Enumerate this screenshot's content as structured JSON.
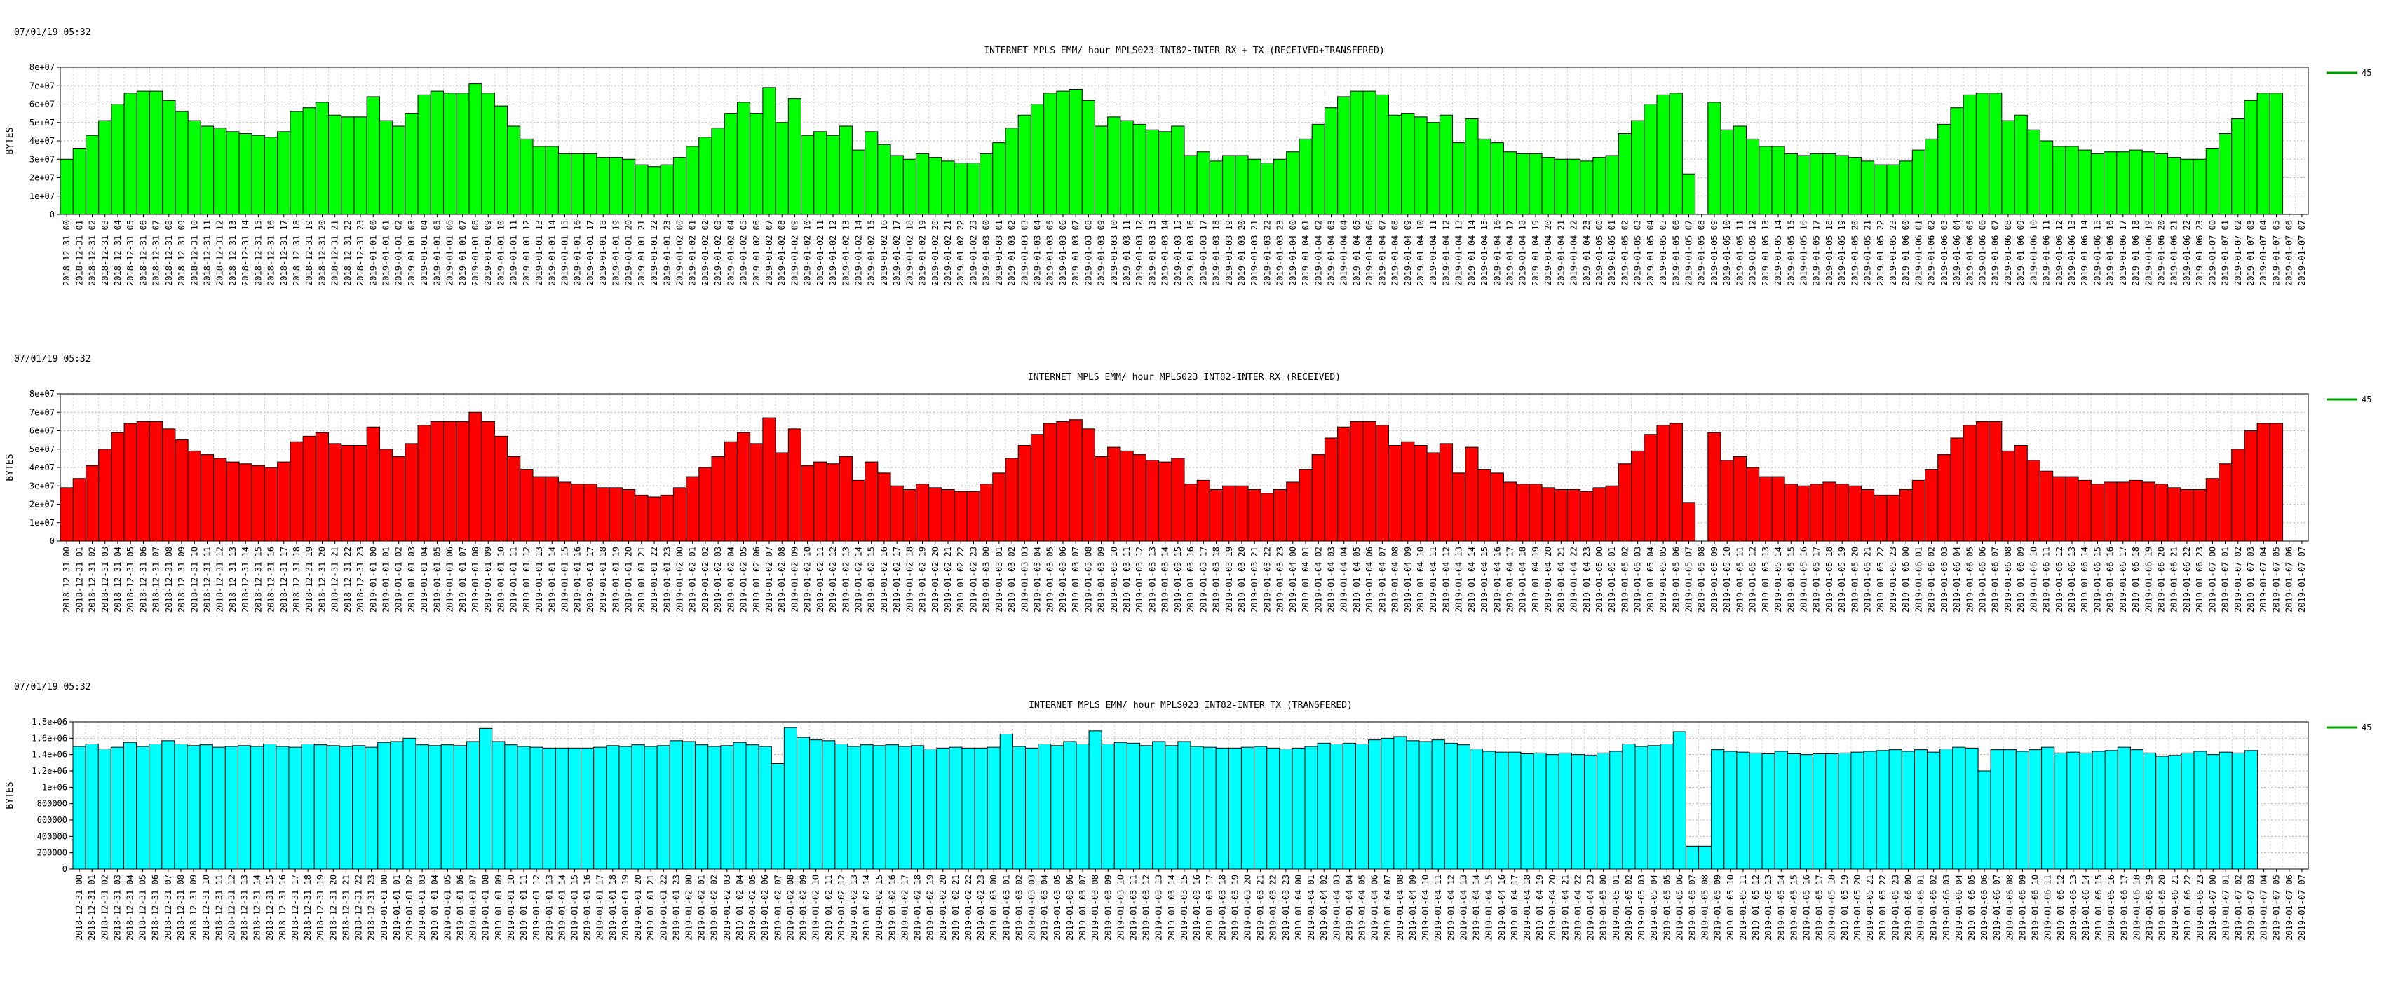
{
  "timestamp": "07/01/19 05:32",
  "legend_label": "45",
  "axis_ylabel": "BYTES",
  "x_start": "2018-12-31 00",
  "x_count": 176,
  "chart_data": [
    {
      "type": "bar",
      "title": "INTERNET MPLS EMM/ hour MPLS023 INT82-INTER RX + TX (RECEIVED+TRANSFERED)",
      "ylabel": "BYTES",
      "ylim": [
        0,
        80000000
      ],
      "yticks": [
        0,
        10000000,
        20000000,
        30000000,
        40000000,
        50000000,
        60000000,
        70000000,
        80000000
      ],
      "ytick_labels": [
        "0",
        "1e+07",
        "2e+07",
        "3e+07",
        "4e+07",
        "5e+07",
        "6e+07",
        "7e+07",
        "8e+07"
      ],
      "color": "#00ff00",
      "series": [
        {
          "name": "45",
          "values": [
            30,
            36,
            43,
            51,
            60,
            66,
            67,
            67,
            62,
            56,
            51,
            48,
            47,
            45,
            44,
            43,
            42,
            45,
            56,
            58,
            61,
            54,
            53,
            53,
            64,
            51,
            48,
            55,
            65,
            67,
            66,
            66,
            71,
            66,
            59,
            48,
            41,
            37,
            37,
            33,
            33,
            33,
            31,
            31,
            30,
            27,
            26,
            27,
            31,
            37,
            42,
            47,
            55,
            61,
            55,
            69,
            50,
            63,
            43,
            45,
            43,
            48,
            35,
            45,
            38,
            32,
            30,
            33,
            31,
            29,
            28,
            28,
            33,
            39,
            47,
            54,
            60,
            66,
            67,
            68,
            62,
            48,
            53,
            51,
            49,
            46,
            45,
            48,
            32,
            34,
            29,
            32,
            32,
            30,
            28,
            30,
            34,
            41,
            49,
            58,
            64,
            67,
            67,
            65,
            54,
            55,
            53,
            50,
            54,
            39,
            52,
            41,
            39,
            34,
            33,
            33,
            31,
            30,
            30,
            29,
            31,
            32,
            44,
            51,
            60,
            65,
            66,
            22,
            0,
            61,
            46,
            48,
            41,
            37,
            37,
            33,
            32,
            33,
            33,
            32,
            31,
            29,
            27,
            27,
            29,
            35,
            41,
            49,
            58,
            65,
            66,
            66,
            51,
            54,
            46,
            40,
            37,
            37,
            35,
            33,
            34,
            34,
            35,
            34,
            33,
            31,
            30,
            30,
            36,
            44,
            52,
            62,
            66,
            66
          ]
        }
      ]
    },
    {
      "type": "bar",
      "title": "INTERNET MPLS EMM/ hour MPLS023 INT82-INTER RX (RECEIVED)",
      "ylabel": "BYTES",
      "ylim": [
        0,
        80000000
      ],
      "yticks": [
        0,
        10000000,
        20000000,
        30000000,
        40000000,
        50000000,
        60000000,
        70000000,
        80000000
      ],
      "ytick_labels": [
        "0",
        "1e+07",
        "2e+07",
        "3e+07",
        "4e+07",
        "5e+07",
        "6e+07",
        "7e+07",
        "8e+07"
      ],
      "color": "#ff0000",
      "series": [
        {
          "name": "45",
          "values": [
            29,
            34,
            41,
            50,
            59,
            64,
            65,
            65,
            61,
            55,
            49,
            47,
            45,
            43,
            42,
            41,
            40,
            43,
            54,
            57,
            59,
            53,
            52,
            52,
            62,
            50,
            46,
            53,
            63,
            65,
            65,
            65,
            70,
            65,
            57,
            46,
            39,
            35,
            35,
            32,
            31,
            31,
            29,
            29,
            28,
            25,
            24,
            25,
            29,
            35,
            40,
            46,
            54,
            59,
            53,
            67,
            48,
            61,
            41,
            43,
            42,
            46,
            33,
            43,
            37,
            30,
            28,
            31,
            29,
            28,
            27,
            27,
            31,
            37,
            45,
            52,
            58,
            64,
            65,
            66,
            61,
            46,
            51,
            49,
            47,
            44,
            43,
            45,
            31,
            33,
            28,
            30,
            30,
            28,
            26,
            28,
            32,
            39,
            47,
            56,
            62,
            65,
            65,
            63,
            52,
            54,
            52,
            48,
            53,
            37,
            51,
            39,
            37,
            32,
            31,
            31,
            29,
            28,
            28,
            27,
            29,
            30,
            42,
            49,
            58,
            63,
            64,
            21,
            0,
            59,
            44,
            46,
            40,
            35,
            35,
            31,
            30,
            31,
            32,
            31,
            30,
            28,
            25,
            25,
            28,
            33,
            39,
            47,
            56,
            63,
            65,
            65,
            49,
            52,
            44,
            38,
            35,
            35,
            33,
            31,
            32,
            32,
            33,
            32,
            31,
            29,
            28,
            28,
            34,
            42,
            50,
            60,
            64,
            64
          ]
        }
      ]
    },
    {
      "type": "bar",
      "title": "INTERNET MPLS EMM/ hour MPLS023 INT82-INTER TX (TRANSFERED)",
      "ylabel": "BYTES",
      "ylim": [
        0,
        1800000
      ],
      "yticks": [
        0,
        200000,
        400000,
        600000,
        800000,
        1000000,
        1200000,
        1400000,
        1600000,
        1800000
      ],
      "ytick_labels": [
        "0",
        "200000",
        "400000",
        "600000",
        "800000",
        "1e+06",
        "1.2e+06",
        "1.4e+06",
        "1.6e+06",
        "1.8e+06"
      ],
      "color": "#00ffff",
      "series": [
        {
          "name": "45",
          "values": [
            1500000,
            1530000,
            1470000,
            1490000,
            1550000,
            1500000,
            1530000,
            1570000,
            1530000,
            1510000,
            1520000,
            1490000,
            1500000,
            1510000,
            1500000,
            1530000,
            1500000,
            1490000,
            1530000,
            1520000,
            1510000,
            1500000,
            1510000,
            1490000,
            1550000,
            1560000,
            1600000,
            1520000,
            1510000,
            1520000,
            1510000,
            1560000,
            1720000,
            1560000,
            1520000,
            1500000,
            1490000,
            1480000,
            1480000,
            1480000,
            1480000,
            1490000,
            1510000,
            1500000,
            1520000,
            1500000,
            1510000,
            1570000,
            1560000,
            1520000,
            1500000,
            1510000,
            1550000,
            1520000,
            1500000,
            1290000,
            1730000,
            1610000,
            1580000,
            1570000,
            1530000,
            1500000,
            1520000,
            1510000,
            1520000,
            1500000,
            1510000,
            1470000,
            1480000,
            1490000,
            1480000,
            1480000,
            1490000,
            1650000,
            1500000,
            1480000,
            1530000,
            1510000,
            1560000,
            1530000,
            1690000,
            1530000,
            1550000,
            1540000,
            1510000,
            1560000,
            1510000,
            1560000,
            1500000,
            1490000,
            1480000,
            1480000,
            1490000,
            1500000,
            1480000,
            1470000,
            1480000,
            1500000,
            1540000,
            1530000,
            1540000,
            1530000,
            1580000,
            1600000,
            1620000,
            1570000,
            1560000,
            1580000,
            1540000,
            1520000,
            1470000,
            1440000,
            1430000,
            1430000,
            1410000,
            1420000,
            1400000,
            1420000,
            1400000,
            1390000,
            1420000,
            1440000,
            1530000,
            1500000,
            1510000,
            1530000,
            1680000,
            280000,
            280000,
            1460000,
            1440000,
            1430000,
            1420000,
            1410000,
            1440000,
            1410000,
            1400000,
            1410000,
            1410000,
            1420000,
            1430000,
            1440000,
            1450000,
            1460000,
            1440000,
            1460000,
            1430000,
            1470000,
            1490000,
            1480000,
            1200000,
            1460000,
            1460000,
            1440000,
            1460000,
            1490000,
            1420000,
            1430000,
            1420000,
            1440000,
            1450000,
            1490000,
            1460000,
            1420000,
            1380000,
            1390000,
            1420000,
            1440000,
            1400000,
            1430000,
            1420000,
            1450000
          ]
        }
      ]
    }
  ]
}
